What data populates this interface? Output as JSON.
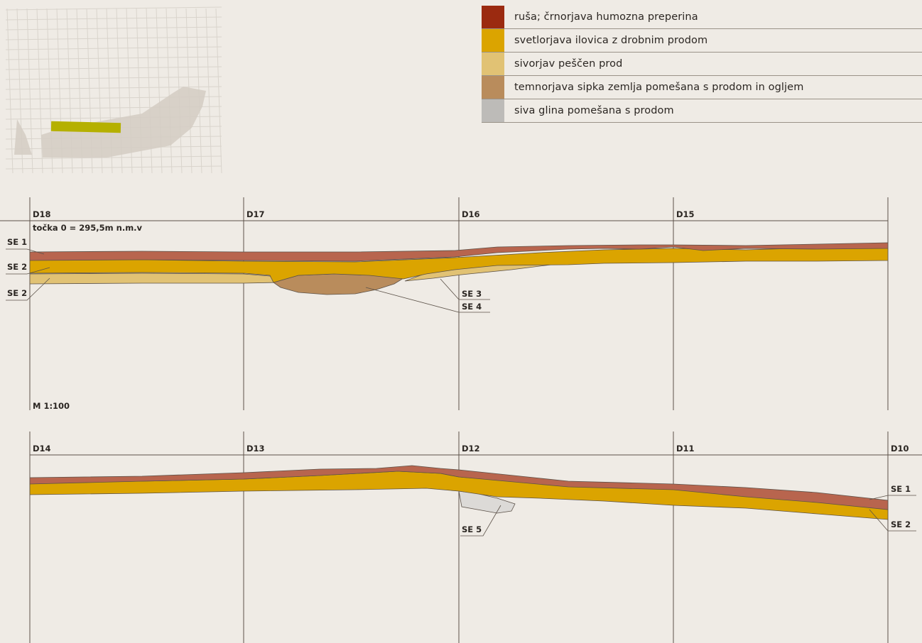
{
  "legend": [
    {
      "label": "ruša; črnorjava humozna preperina",
      "color": "#9b2a10"
    },
    {
      "label": "svetlorjava ilovica z drobnim prodom",
      "color": "#dba400"
    },
    {
      "label": "sivorjav peščen prod",
      "color": "#e1c274"
    },
    {
      "label": "temnorjava sipka zemlja pomešana s prodom in ogljem",
      "color": "#b98c5c"
    },
    {
      "label": "siva glina pomešana s prodom",
      "color": "#bdbbb8"
    }
  ],
  "profile1": {
    "stations": [
      "D18",
      "D17",
      "D16",
      "D15"
    ],
    "datum": "točka 0 = 295,5m n.m.v",
    "scale": "M 1:100",
    "labels_left": [
      "SE 1",
      "SE 2",
      "SE 2"
    ],
    "labels_mid": [
      "SE 3",
      "SE 4"
    ]
  },
  "profile2": {
    "stations": [
      "D14",
      "D13",
      "D12",
      "D11",
      "D10"
    ],
    "labels_mid": [
      "SE 5"
    ],
    "labels_right": [
      "SE 1",
      "SE 2"
    ]
  },
  "colors": {
    "turf": "#b8654e",
    "loam": "#dba400",
    "gravel": "#e1c274",
    "pit": "#b98c5c",
    "clay": "#dcdad7",
    "line": "#5c5249",
    "minimap_bar": "#b5b000"
  }
}
